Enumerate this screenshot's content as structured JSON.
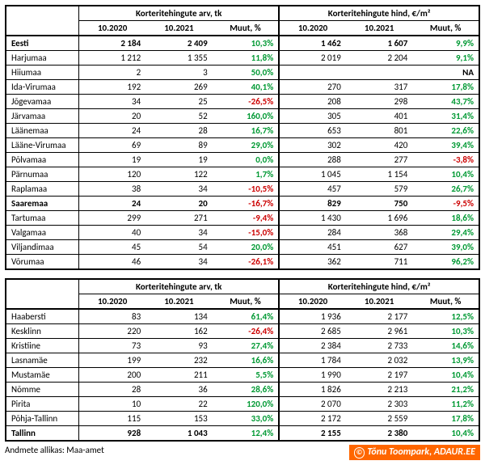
{
  "headers": {
    "group_count": "Korteritehingute arv, tk",
    "group_price": "Korteritehingute hind, €/m²",
    "p1": "10.2020",
    "p2": "10.2021",
    "change": "Muut, %"
  },
  "tables": [
    {
      "rows": [
        {
          "label": "Eesti",
          "bold": true,
          "c1": "2 184",
          "c2": "2 409",
          "cc": "10,3%",
          "cdir": "pos",
          "p1": "1 462",
          "p2": "1 607",
          "pc": "9,9%",
          "pdir": "pos"
        },
        {
          "label": "Harjumaa",
          "c1": "1 212",
          "c2": "1 355",
          "cc": "11,8%",
          "cdir": "pos",
          "p1": "2 019",
          "p2": "2 204",
          "pc": "9,1%",
          "pdir": "pos"
        },
        {
          "label": "Hiiumaa",
          "c1": "2",
          "c2": "3",
          "cc": "50,0%",
          "cdir": "pos",
          "p1": "",
          "p2": "",
          "pc": "NA",
          "pdir": "na"
        },
        {
          "label": "Ida-Virumaa",
          "c1": "192",
          "c2": "269",
          "cc": "40,1%",
          "cdir": "pos",
          "p1": "270",
          "p2": "317",
          "pc": "17,8%",
          "pdir": "pos"
        },
        {
          "label": "Jõgevamaa",
          "c1": "34",
          "c2": "25",
          "cc": "-26,5%",
          "cdir": "neg",
          "p1": "208",
          "p2": "298",
          "pc": "43,7%",
          "pdir": "pos"
        },
        {
          "label": "Järvamaa",
          "c1": "20",
          "c2": "52",
          "cc": "160,0%",
          "cdir": "pos",
          "p1": "305",
          "p2": "401",
          "pc": "31,4%",
          "pdir": "pos"
        },
        {
          "label": "Läänemaa",
          "c1": "24",
          "c2": "28",
          "cc": "16,7%",
          "cdir": "pos",
          "p1": "653",
          "p2": "801",
          "pc": "22,6%",
          "pdir": "pos"
        },
        {
          "label": "Lääne-Virumaa",
          "c1": "69",
          "c2": "89",
          "cc": "29,0%",
          "cdir": "pos",
          "p1": "302",
          "p2": "420",
          "pc": "39,4%",
          "pdir": "pos"
        },
        {
          "label": "Põlvamaa",
          "c1": "19",
          "c2": "19",
          "cc": "0,0%",
          "cdir": "pos",
          "p1": "288",
          "p2": "277",
          "pc": "-3,8%",
          "pdir": "neg"
        },
        {
          "label": "Pärnumaa",
          "c1": "120",
          "c2": "122",
          "cc": "1,7%",
          "cdir": "pos",
          "p1": "1 045",
          "p2": "1 154",
          "pc": "10,4%",
          "pdir": "pos"
        },
        {
          "label": "Raplamaa",
          "c1": "38",
          "c2": "34",
          "cc": "-10,5%",
          "cdir": "neg",
          "p1": "457",
          "p2": "579",
          "pc": "26,7%",
          "pdir": "pos"
        },
        {
          "label": "Saaremaa",
          "c1": "24",
          "c2": "20",
          "cc": "-16,7%",
          "cdir": "neg",
          "p1": "829",
          "p2": "750",
          "pc": "-9,5%",
          "pdir": "neg",
          "bold": true
        },
        {
          "label": "Tartumaa",
          "c1": "299",
          "c2": "271",
          "cc": "-9,4%",
          "cdir": "neg",
          "p1": "1 430",
          "p2": "1 696",
          "pc": "18,6%",
          "pdir": "pos"
        },
        {
          "label": "Valgamaa",
          "c1": "40",
          "c2": "34",
          "cc": "-15,0%",
          "cdir": "neg",
          "p1": "284",
          "p2": "368",
          "pc": "29,4%",
          "pdir": "pos"
        },
        {
          "label": "Viljandimaa",
          "c1": "45",
          "c2": "54",
          "cc": "20,0%",
          "cdir": "pos",
          "p1": "451",
          "p2": "627",
          "pc": "39,0%",
          "pdir": "pos"
        },
        {
          "label": "Võrumaa",
          "c1": "46",
          "c2": "34",
          "cc": "-26,1%",
          "cdir": "neg",
          "p1": "362",
          "p2": "711",
          "pc": "96,2%",
          "pdir": "pos"
        }
      ]
    },
    {
      "rows": [
        {
          "label": "Haabersti",
          "c1": "83",
          "c2": "134",
          "cc": "61,4%",
          "cdir": "pos",
          "p1": "1 936",
          "p2": "2 177",
          "pc": "12,5%",
          "pdir": "pos"
        },
        {
          "label": "Kesklinn",
          "c1": "220",
          "c2": "162",
          "cc": "-26,4%",
          "cdir": "neg",
          "p1": "2 685",
          "p2": "2 961",
          "pc": "10,3%",
          "pdir": "pos"
        },
        {
          "label": "Kristiine",
          "c1": "73",
          "c2": "93",
          "cc": "27,4%",
          "cdir": "pos",
          "p1": "2 384",
          "p2": "2 733",
          "pc": "14,6%",
          "pdir": "pos"
        },
        {
          "label": "Lasnamäe",
          "c1": "199",
          "c2": "232",
          "cc": "16,6%",
          "cdir": "pos",
          "p1": "1 784",
          "p2": "2 032",
          "pc": "13,9%",
          "pdir": "pos"
        },
        {
          "label": "Mustamäe",
          "c1": "200",
          "c2": "211",
          "cc": "5,5%",
          "cdir": "pos",
          "p1": "1 990",
          "p2": "2 197",
          "pc": "10,4%",
          "pdir": "pos"
        },
        {
          "label": "Nõmme",
          "c1": "28",
          "c2": "36",
          "cc": "28,6%",
          "cdir": "pos",
          "p1": "1 826",
          "p2": "2 213",
          "pc": "21,2%",
          "pdir": "pos"
        },
        {
          "label": "Pirita",
          "c1": "10",
          "c2": "22",
          "cc": "120,0%",
          "cdir": "pos",
          "p1": "2 070",
          "p2": "2 303",
          "pc": "11,2%",
          "pdir": "pos"
        },
        {
          "label": "Põhja-Tallinn",
          "c1": "115",
          "c2": "153",
          "cc": "33,0%",
          "cdir": "pos",
          "p1": "2 172",
          "p2": "2 559",
          "pc": "17,8%",
          "pdir": "pos"
        },
        {
          "label": "Tallinn",
          "bold": true,
          "c1": "928",
          "c2": "1 043",
          "cc": "12,4%",
          "cdir": "pos",
          "p1": "2 155",
          "p2": "2 380",
          "pc": "10,4%",
          "pdir": "pos"
        }
      ]
    }
  ],
  "footer": {
    "source_label": "Andmete allikas: Maa-amet",
    "credit": "Tõnu Toompark, ADAUR.EE"
  }
}
